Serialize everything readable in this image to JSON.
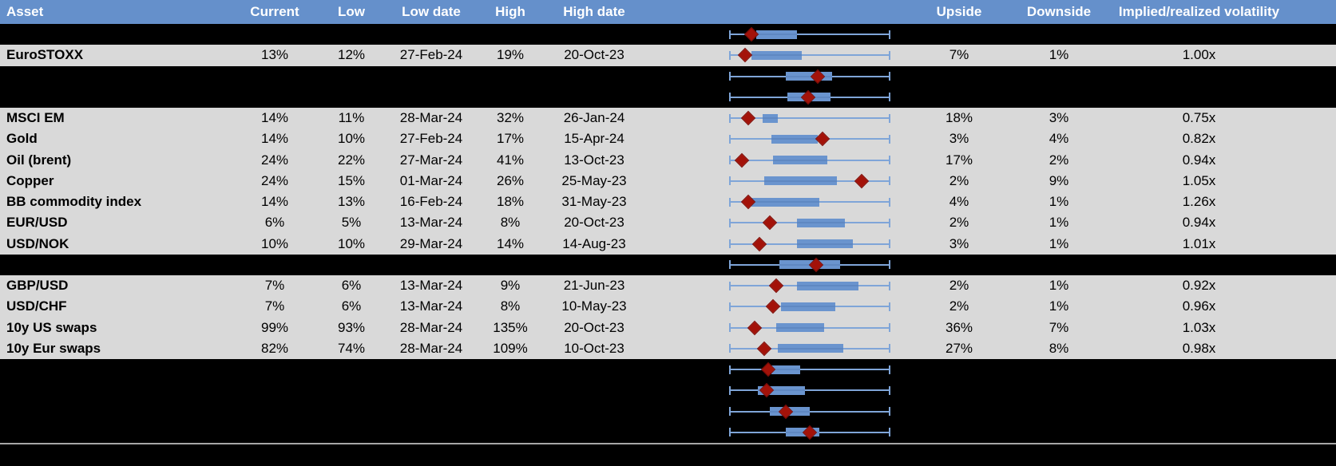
{
  "columns": [
    {
      "id": "asset",
      "label": "Asset"
    },
    {
      "id": "current",
      "label": "Current"
    },
    {
      "id": "low",
      "label": "Low"
    },
    {
      "id": "low_date",
      "label": "Low date"
    },
    {
      "id": "high",
      "label": "High"
    },
    {
      "id": "high_date",
      "label": "High date"
    },
    {
      "id": "range_chart",
      "label": ""
    },
    {
      "id": "upside",
      "label": "Upside"
    },
    {
      "id": "downside",
      "label": "Downside"
    },
    {
      "id": "impl_real",
      "label": "Implied/realized volatility"
    }
  ],
  "colors": {
    "header_bg": "#6590CB",
    "header_text": "#FFFFFF",
    "data_row_bg": "#D9D9D9",
    "hidden_row_bg": "#000000",
    "box_fill": "#6A94CE",
    "whisker": "#7FA5D8",
    "box_midline": "#5F88C2",
    "marker": "#A31209",
    "divider": "#A6A6A6",
    "text": "#000000"
  },
  "rows": [
    {
      "type": "hidden",
      "plot": {
        "box": [
          0.17,
          0.42
        ],
        "marker": 0.14
      }
    },
    {
      "type": "data",
      "asset": "EuroSTOXX",
      "current": "13%",
      "low": "12%",
      "low_date": "27-Feb-24",
      "high": "19%",
      "high_date": "20-Oct-23",
      "upside": "7%",
      "downside": "1%",
      "impl_real": "1.00x",
      "plot": {
        "box": [
          0.14,
          0.45
        ],
        "marker": 0.1
      }
    },
    {
      "type": "hidden",
      "plot": {
        "box": [
          0.35,
          0.64
        ],
        "marker": 0.55
      }
    },
    {
      "type": "hidden",
      "plot": {
        "box": [
          0.36,
          0.63
        ],
        "marker": 0.49
      }
    },
    {
      "type": "data",
      "asset": "MSCI EM",
      "current": "14%",
      "low": "11%",
      "low_date": "28-Mar-24",
      "high": "32%",
      "high_date": "26-Jan-24",
      "upside": "18%",
      "downside": "3%",
      "impl_real": "0.75x",
      "plot": {
        "box": [
          0.21,
          0.3
        ],
        "marker": 0.12
      }
    },
    {
      "type": "data",
      "asset": "Gold",
      "current": "14%",
      "low": "10%",
      "low_date": "27-Feb-24",
      "high": "17%",
      "high_date": "15-Apr-24",
      "upside": "3%",
      "downside": "4%",
      "impl_real": "0.82x",
      "plot": {
        "box": [
          0.26,
          0.55
        ],
        "marker": 0.58
      }
    },
    {
      "type": "data",
      "asset": "Oil (brent)",
      "current": "24%",
      "low": "22%",
      "low_date": "27-Mar-24",
      "high": "41%",
      "high_date": "13-Oct-23",
      "upside": "17%",
      "downside": "2%",
      "impl_real": "0.94x",
      "plot": {
        "box": [
          0.27,
          0.61
        ],
        "marker": 0.08
      }
    },
    {
      "type": "data",
      "asset": "Copper",
      "current": "24%",
      "low": "15%",
      "low_date": "01-Mar-24",
      "high": "26%",
      "high_date": "25-May-23",
      "upside": "2%",
      "downside": "9%",
      "impl_real": "1.05x",
      "plot": {
        "box": [
          0.22,
          0.67
        ],
        "marker": 0.82
      }
    },
    {
      "type": "data",
      "asset": "BB commodity index",
      "current": "14%",
      "low": "13%",
      "low_date": "16-Feb-24",
      "high": "18%",
      "high_date": "31-May-23",
      "upside": "4%",
      "downside": "1%",
      "impl_real": "1.26x",
      "plot": {
        "box": [
          0.14,
          0.56
        ],
        "marker": 0.12
      }
    },
    {
      "type": "data",
      "asset": "EUR/USD",
      "current": "6%",
      "low": "5%",
      "low_date": "13-Mar-24",
      "high": "8%",
      "high_date": "20-Oct-23",
      "upside": "2%",
      "downside": "1%",
      "impl_real": "0.94x",
      "plot": {
        "box": [
          0.42,
          0.72
        ],
        "marker": 0.25
      }
    },
    {
      "type": "data",
      "asset": "USD/NOK",
      "current": "10%",
      "low": "10%",
      "low_date": "29-Mar-24",
      "high": "14%",
      "high_date": "14-Aug-23",
      "upside": "3%",
      "downside": "1%",
      "impl_real": "1.01x",
      "plot": {
        "box": [
          0.42,
          0.77
        ],
        "marker": 0.19
      }
    },
    {
      "type": "hidden",
      "plot": {
        "box": [
          0.31,
          0.69
        ],
        "marker": 0.54
      }
    },
    {
      "type": "data",
      "asset": "GBP/USD",
      "current": "7%",
      "low": "6%",
      "low_date": "13-Mar-24",
      "high": "9%",
      "high_date": "21-Jun-23",
      "upside": "2%",
      "downside": "1%",
      "impl_real": "0.92x",
      "plot": {
        "box": [
          0.42,
          0.8
        ],
        "marker": 0.29
      }
    },
    {
      "type": "data",
      "asset": "USD/CHF",
      "current": "7%",
      "low": "6%",
      "low_date": "13-Mar-24",
      "high": "8%",
      "high_date": "10-May-23",
      "upside": "2%",
      "downside": "1%",
      "impl_real": "0.96x",
      "plot": {
        "box": [
          0.32,
          0.66
        ],
        "marker": 0.27
      }
    },
    {
      "type": "data",
      "asset": "10y US swaps",
      "current": "99%",
      "low": "93%",
      "low_date": "28-Mar-24",
      "high": "135%",
      "high_date": "20-Oct-23",
      "upside": "36%",
      "downside": "7%",
      "impl_real": "1.03x",
      "plot": {
        "box": [
          0.29,
          0.59
        ],
        "marker": 0.16
      }
    },
    {
      "type": "data",
      "asset": "10y Eur swaps",
      "current": "82%",
      "low": "74%",
      "low_date": "28-Mar-24",
      "high": "109%",
      "high_date": "10-Oct-23",
      "upside": "27%",
      "downside": "8%",
      "impl_real": "0.98x",
      "plot": {
        "box": [
          0.3,
          0.71
        ],
        "marker": 0.22
      }
    },
    {
      "type": "hidden",
      "plot": {
        "box": [
          0.26,
          0.44
        ],
        "marker": 0.24
      }
    },
    {
      "type": "hidden",
      "plot": {
        "box": [
          0.18,
          0.47
        ],
        "marker": 0.23
      }
    },
    {
      "type": "hidden",
      "plot": {
        "box": [
          0.25,
          0.5
        ],
        "marker": 0.35
      }
    },
    {
      "type": "hidden",
      "plot": {
        "box": [
          0.35,
          0.56
        ],
        "marker": 0.5
      }
    }
  ],
  "chart_data": {
    "type": "box",
    "orientation": "horizontal",
    "title": "Volatility range per asset: whiskers span the period low..high, box = middle range, red diamond = current level",
    "x_normalized_range": [
      0,
      1
    ],
    "legend_position": "none",
    "grid": false,
    "series": [
      {
        "row": 1,
        "label": "",
        "box": [
          0.17,
          0.42
        ],
        "marker": 0.14
      },
      {
        "row": 2,
        "label": "EuroSTOXX",
        "box": [
          0.14,
          0.45
        ],
        "marker": 0.1,
        "low": "12%",
        "high": "19%",
        "current": "13%"
      },
      {
        "row": 3,
        "label": "",
        "box": [
          0.35,
          0.64
        ],
        "marker": 0.55
      },
      {
        "row": 4,
        "label": "",
        "box": [
          0.36,
          0.63
        ],
        "marker": 0.49
      },
      {
        "row": 5,
        "label": "MSCI EM",
        "box": [
          0.21,
          0.3
        ],
        "marker": 0.12,
        "low": "11%",
        "high": "32%",
        "current": "14%"
      },
      {
        "row": 6,
        "label": "Gold",
        "box": [
          0.26,
          0.55
        ],
        "marker": 0.58,
        "low": "10%",
        "high": "17%",
        "current": "14%"
      },
      {
        "row": 7,
        "label": "Oil (brent)",
        "box": [
          0.27,
          0.61
        ],
        "marker": 0.08,
        "low": "22%",
        "high": "41%",
        "current": "24%"
      },
      {
        "row": 8,
        "label": "Copper",
        "box": [
          0.22,
          0.67
        ],
        "marker": 0.82,
        "low": "15%",
        "high": "26%",
        "current": "24%"
      },
      {
        "row": 9,
        "label": "BB commodity index",
        "box": [
          0.14,
          0.56
        ],
        "marker": 0.12,
        "low": "13%",
        "high": "18%",
        "current": "14%"
      },
      {
        "row": 10,
        "label": "EUR/USD",
        "box": [
          0.42,
          0.72
        ],
        "marker": 0.25,
        "low": "5%",
        "high": "8%",
        "current": "6%"
      },
      {
        "row": 11,
        "label": "USD/NOK",
        "box": [
          0.42,
          0.77
        ],
        "marker": 0.19,
        "low": "10%",
        "high": "14%",
        "current": "10%"
      },
      {
        "row": 12,
        "label": "",
        "box": [
          0.31,
          0.69
        ],
        "marker": 0.54
      },
      {
        "row": 13,
        "label": "GBP/USD",
        "box": [
          0.42,
          0.8
        ],
        "marker": 0.29,
        "low": "6%",
        "high": "9%",
        "current": "7%"
      },
      {
        "row": 14,
        "label": "USD/CHF",
        "box": [
          0.32,
          0.66
        ],
        "marker": 0.27,
        "low": "6%",
        "high": "8%",
        "current": "7%"
      },
      {
        "row": 15,
        "label": "10y US swaps",
        "box": [
          0.29,
          0.59
        ],
        "marker": 0.16,
        "low": "93%",
        "high": "135%",
        "current": "99%"
      },
      {
        "row": 16,
        "label": "10y Eur swaps",
        "box": [
          0.3,
          0.71
        ],
        "marker": 0.22,
        "low": "74%",
        "high": "109%",
        "current": "82%"
      },
      {
        "row": 17,
        "label": "",
        "box": [
          0.26,
          0.44
        ],
        "marker": 0.24
      },
      {
        "row": 18,
        "label": "",
        "box": [
          0.18,
          0.47
        ],
        "marker": 0.23
      },
      {
        "row": 19,
        "label": "",
        "box": [
          0.25,
          0.5
        ],
        "marker": 0.35
      },
      {
        "row": 20,
        "label": "",
        "box": [
          0.35,
          0.56
        ],
        "marker": 0.5
      }
    ]
  }
}
